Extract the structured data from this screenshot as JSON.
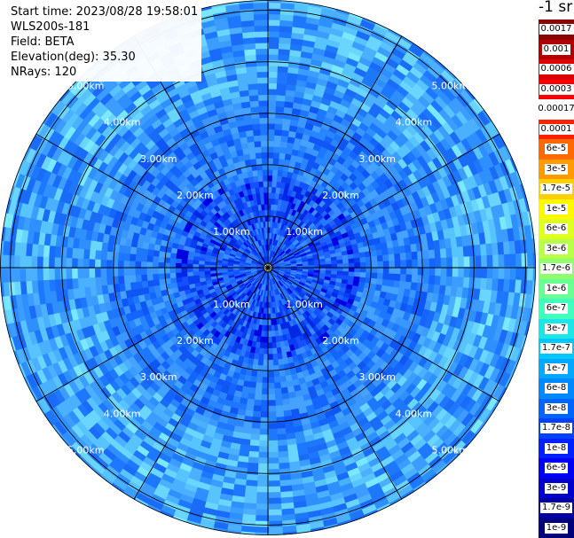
{
  "header": {
    "start_time": "Start time: 2023/08/28 19:58:01",
    "instrument": "WLS200s-181",
    "field": "Field: BETA",
    "elevation": "Elevation(deg): 35.30",
    "nrays": "NRays: 120"
  },
  "colorbar": {
    "unit": "-1 sr",
    "labels": [
      "0.0017",
      "0.001",
      "0.0006",
      "0.0003",
      "0.00017",
      "0.0001",
      "6e-5",
      "3e-5",
      "1.7e-5",
      "1e-5",
      "6e-6",
      "3e-6",
      "1.7e-6",
      "1e-6",
      "6e-7",
      "3e-7",
      "1.7e-7",
      "1e-7",
      "6e-8",
      "3e-8",
      "1.7e-8",
      "1e-8",
      "6e-9",
      "3e-9",
      "1.7e-9",
      "1e-9"
    ],
    "colors": [
      "#8b0000",
      "#b00000",
      "#dd0000",
      "#ff0000",
      "#ffffff",
      "#ff2000",
      "#ff6a00",
      "#ff9a00",
      "#ffd000",
      "#fff800",
      "#dfff20",
      "#b8ff48",
      "#90ff6e",
      "#6aff94",
      "#40ffbe",
      "#1ce6e6",
      "#00c8ff",
      "#00a8ff",
      "#0088ff",
      "#0064ff",
      "#0040ff",
      "#0020ff",
      "#0000f4",
      "#0000cc",
      "#0000a4",
      "#00007a"
    ]
  },
  "chart_data": {
    "type": "heatmap",
    "projection": "polar (PPI)",
    "rays": 120,
    "field": "BETA",
    "range_rings": [
      "1.00km",
      "2.00km",
      "3.00km",
      "4.00km",
      "5.00km"
    ],
    "range_max_km": 5.0,
    "spokes_deg": [
      0,
      30,
      60,
      90,
      120,
      150,
      180,
      210,
      240,
      270,
      300,
      330
    ],
    "ring_labels_visible": [
      {
        "ring": "1.00km",
        "quadrants": [
          "NW",
          "NE",
          "SW",
          "SE"
        ]
      },
      {
        "ring": "2.00km",
        "quadrants": [
          "NW",
          "NE",
          "SW",
          "SE"
        ]
      },
      {
        "ring": "3.00km",
        "quadrants": [
          "NW",
          "NE",
          "SW",
          "SE"
        ]
      },
      {
        "ring": "4.00km",
        "quadrants": [
          "NW",
          "NE",
          "SW",
          "SE"
        ]
      },
      {
        "ring": "5.00km",
        "quadrants": [
          "NW",
          "NE",
          "SW",
          "SE"
        ]
      }
    ],
    "dominant_value_range": [
      "3e-8",
      "1.7e-8"
    ],
    "colorscale": "jet, logarithmic 1e-9 to 0.0017 sr-1"
  }
}
